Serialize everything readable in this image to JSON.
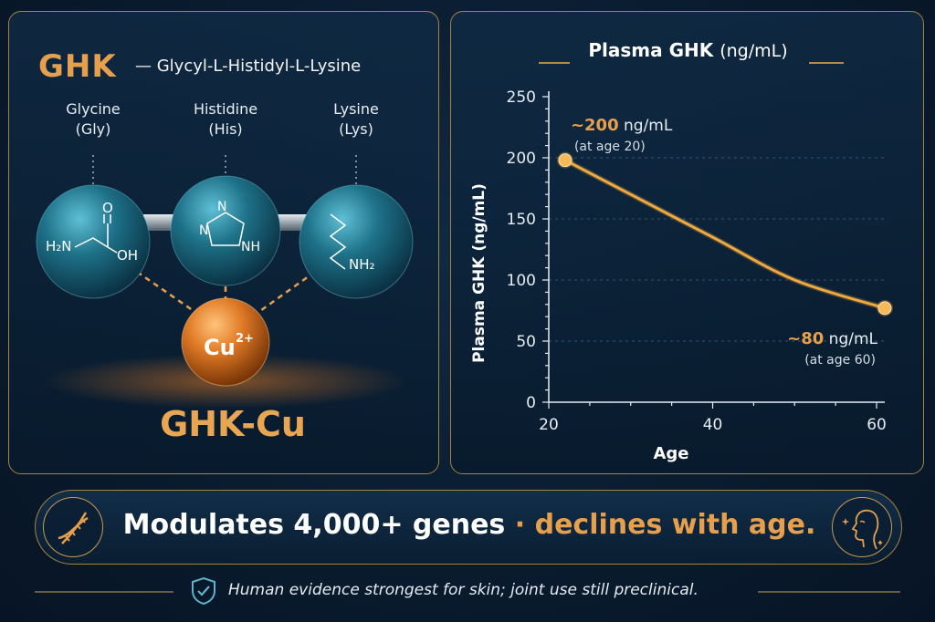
{
  "left": {
    "title": "GHK",
    "subtitle": "— Glycyl-L-Histidyl-L-Lysine",
    "amino_acids": [
      {
        "name": "Glycine",
        "abbr": "(Gly)"
      },
      {
        "name": "Histidine",
        "abbr": "(His)"
      },
      {
        "name": "Lysine",
        "abbr": "(Lys)"
      }
    ],
    "labels": {
      "h2n": "H₂N",
      "o": "O",
      "oh": "OH",
      "n": "N",
      "nh": "NH",
      "nh2": "NH₂",
      "cu": "Cu",
      "cu_charge": "2+"
    },
    "complex_name": "GHK-Cu"
  },
  "chart_data": {
    "type": "line",
    "title": "Plasma GHK",
    "title_unit": "(ng/mL)",
    "xlabel": "Age",
    "ylabel": "Plasma GHK (ng/mL)",
    "xlim": [
      20,
      61
    ],
    "ylim": [
      0,
      250
    ],
    "x_ticks": [
      20,
      40,
      60
    ],
    "y_ticks": [
      0,
      50,
      100,
      150,
      200,
      250
    ],
    "x": [
      22,
      30,
      40,
      50,
      61
    ],
    "values": [
      198,
      170,
      135,
      100,
      77
    ],
    "grid": "horizontal-dashed",
    "annotations": [
      {
        "value": "~200",
        "unit": "ng/mL",
        "note": "(at age 20)",
        "x": 22,
        "y": 198
      },
      {
        "value": "~80",
        "unit": "ng/mL",
        "note": "(at age 60)",
        "x": 61,
        "y": 77
      }
    ],
    "color": "#f0a93e"
  },
  "banner": {
    "text_main": "Modulates 4,000+ genes",
    "separator": "·",
    "text_accent": "declines with age.",
    "left_icon": "dna-icon",
    "right_icon": "face-profile-icon"
  },
  "footer": {
    "icon": "shield-check-icon",
    "text": "Human evidence strongest for skin; joint use still preclinical."
  },
  "colors": {
    "accent": "#e6a04d",
    "border": "#a8823f",
    "sphere": "#2a7f96",
    "copper": "#e07a26"
  }
}
